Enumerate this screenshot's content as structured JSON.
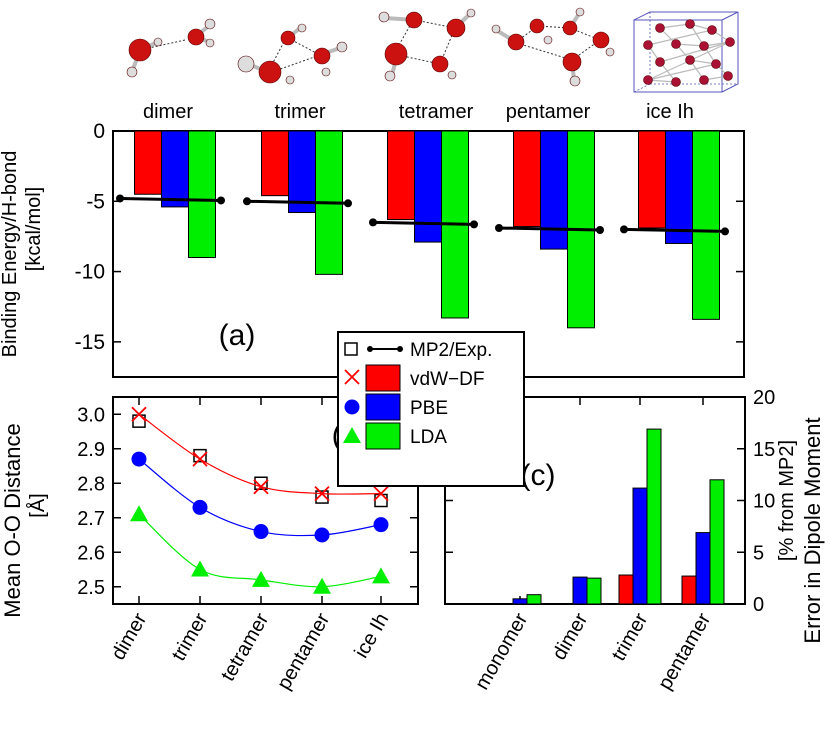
{
  "structures": [
    "dimer",
    "trimer",
    "tetramer",
    "pentamer",
    "ice Ih"
  ],
  "colors": {
    "vdW_DF": "#ff0000",
    "PBE": "#0000ff",
    "LDA": "#00ee00",
    "MP2": "#000000",
    "atom_O": "#cc1111",
    "atom_H": "#dddddd",
    "cell": "#5555bb"
  },
  "legend": [
    {
      "name": "MP2/Exp.",
      "marker": "open-square",
      "line": "dot-line"
    },
    {
      "name": "vdW−DF",
      "marker": "x",
      "color": "#ff0000"
    },
    {
      "name": "PBE",
      "marker": "circle",
      "color": "#0000ff"
    },
    {
      "name": "LDA",
      "marker": "triangle",
      "color": "#00ee00"
    }
  ],
  "chart_data": [
    {
      "id": "a",
      "type": "bar",
      "panel_label": "(a)",
      "ylabel": "Binding Energy/H-bond\n[kcal/mol]",
      "ylim": [
        -17.5,
        0
      ],
      "yticks": [
        0,
        -5,
        -10,
        -15
      ],
      "categories": [
        "dimer",
        "trimer",
        "tetramer",
        "pentamer",
        "ice Ih"
      ],
      "series": [
        {
          "name": "vdW−DF",
          "values": [
            -4.5,
            -4.6,
            -6.3,
            -6.8,
            -6.9
          ]
        },
        {
          "name": "PBE",
          "values": [
            -5.4,
            -5.8,
            -7.9,
            -8.4,
            -8.0
          ]
        },
        {
          "name": "LDA",
          "values": [
            -9.0,
            -10.2,
            -13.3,
            -14.0,
            -13.4
          ]
        }
      ],
      "reference": {
        "name": "MP2/Exp.",
        "values": [
          -4.8,
          -5.0,
          -6.5,
          -6.9,
          -7.0
        ]
      }
    },
    {
      "id": "b",
      "type": "line",
      "panel_label": "(b)",
      "ylabel": "Mean O-O Distance\n[Å]",
      "ylim": [
        2.45,
        3.05
      ],
      "yticks": [
        2.5,
        2.6,
        2.7,
        2.8,
        2.9,
        3.0
      ],
      "yticklabels": [
        "2.5",
        "2.6",
        "2.7",
        "2.8",
        "2.9",
        "3.0"
      ],
      "categories": [
        "dimer",
        "trimer",
        "tetramer",
        "pentamer",
        "ice Ih"
      ],
      "series": [
        {
          "name": "MP2/Exp.",
          "values": [
            2.98,
            2.88,
            2.8,
            2.76,
            2.75
          ]
        },
        {
          "name": "vdW−DF",
          "values": [
            3.0,
            2.87,
            2.79,
            2.77,
            2.77
          ]
        },
        {
          "name": "PBE",
          "values": [
            2.87,
            2.73,
            2.66,
            2.65,
            2.68
          ]
        },
        {
          "name": "LDA",
          "values": [
            2.71,
            2.55,
            2.52,
            2.5,
            2.53
          ]
        }
      ]
    },
    {
      "id": "c",
      "type": "bar",
      "panel_label": "(c)",
      "ylabel": "Error in Dipole Moment\n[% from MP2]",
      "ylim": [
        0,
        20
      ],
      "yticks": [
        0,
        5,
        10,
        15,
        20
      ],
      "categories": [
        "monomer",
        "dimer",
        "trimer",
        "pentamer"
      ],
      "series": [
        {
          "name": "vdW−DF",
          "values": [
            0.0,
            0.0,
            2.8,
            2.7
          ]
        },
        {
          "name": "PBE",
          "values": [
            0.5,
            2.6,
            11.2,
            6.9
          ]
        },
        {
          "name": "LDA",
          "values": [
            0.9,
            2.5,
            16.9,
            12.0
          ]
        }
      ]
    }
  ]
}
